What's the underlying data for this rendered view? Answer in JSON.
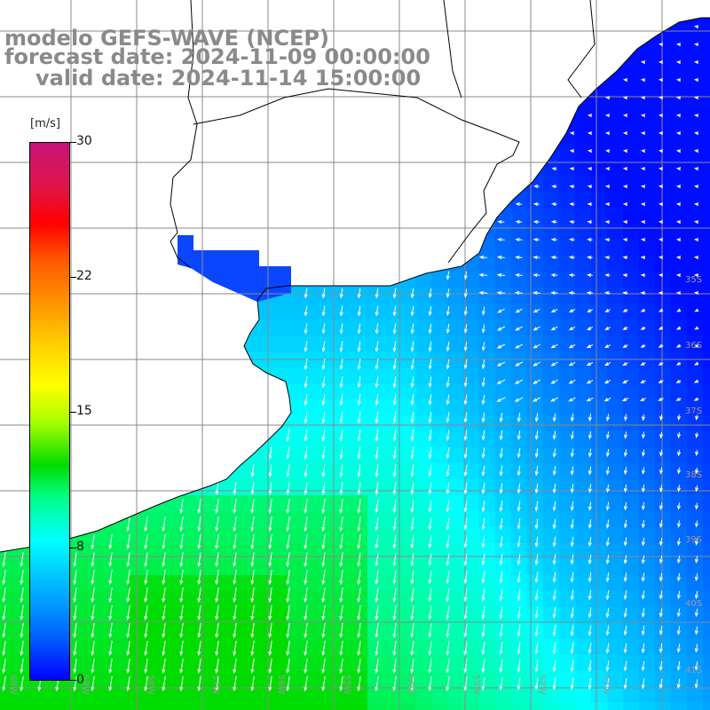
{
  "titles": {
    "model": "modelo GEFS-WAVE (NCEP)",
    "forecast": "forecast date: 2024-11-09 00:00:00",
    "valid": "valid date: 2024-11-14 15:00:00"
  },
  "colorbar": {
    "unit": "[m/s]",
    "ticks": [
      "30",
      "22",
      "15",
      "8",
      "0"
    ],
    "tick_values": [
      30,
      22,
      15,
      8,
      0
    ],
    "range": [
      0,
      30
    ]
  },
  "lat_labels": [
    "35S",
    "36S",
    "37S",
    "38S",
    "39S",
    "40S",
    "41S"
  ],
  "lon_labels": [
    "60W",
    "59W",
    "58W",
    "57W",
    "56W",
    "55W",
    "54W",
    "53W",
    "52W",
    "51W"
  ],
  "colors": {
    "ocean_low": "#0000ff",
    "ocean_mid": "#00ffff",
    "ocean_high": "#00dc00",
    "land": "#ffffff",
    "grid": "#888888",
    "arrows": "#ffffff"
  }
}
